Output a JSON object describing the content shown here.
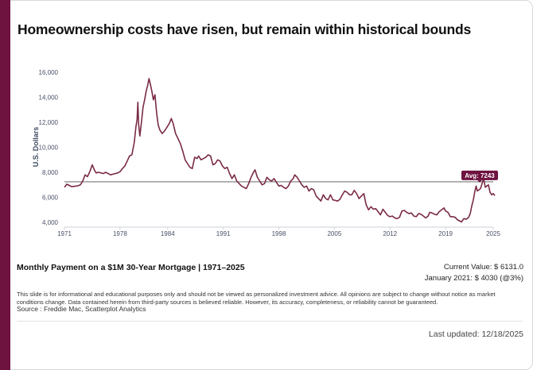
{
  "header": {
    "title": "Homeownership costs have risen, but remain within historical bounds"
  },
  "footer": {
    "subtitle": "Monthly Payment on a $1M 30-Year Mortgage | 1971–2025",
    "current_value_text": "Current Value:  $ 6131.0",
    "january_text": "January 2021: $ 4030 (@3%)",
    "disclaimer": "This slide is for informational and educational purposes only and should not be viewed as personalized investment advice. All opinions are subject to change without notice as market conditions change. Data contained herein from third-party sources is believed reliable. However, its accuracy, completeness, or reliability cannot be guaranteed.",
    "source": "Source : Freddie Mac, Scatterplot Analytics",
    "last_updated": "Last updated: 12/18/2025"
  },
  "colors": {
    "accent": "#6e1240",
    "line": "#7a2b45",
    "avg_line": "#777777"
  },
  "chart_data": {
    "type": "line",
    "ylabel": "U.S. Dollars",
    "xlabel": "",
    "xlim": [
      1971,
      2025.2
    ],
    "ylim": [
      4000,
      16000
    ],
    "xticks": [
      "1971",
      "1978",
      "1984",
      "1991",
      "1998",
      "2005",
      "2012",
      "2019",
      "2025"
    ],
    "yticks": [
      "4,000",
      "6,000",
      "8,000",
      "10,000",
      "12,000",
      "14,000",
      "16,000"
    ],
    "average_label": "Avg: 7243",
    "average": 7243,
    "series": [
      {
        "name": "Monthly Payment",
        "points": [
          [
            1971.0,
            6800
          ],
          [
            1971.3,
            7050
          ],
          [
            1971.6,
            6950
          ],
          [
            1971.9,
            6850
          ],
          [
            1972.3,
            6880
          ],
          [
            1972.7,
            6920
          ],
          [
            1973.0,
            7000
          ],
          [
            1973.3,
            7300
          ],
          [
            1973.6,
            7800
          ],
          [
            1973.9,
            7650
          ],
          [
            1974.2,
            8050
          ],
          [
            1974.5,
            8600
          ],
          [
            1974.8,
            8150
          ],
          [
            1975.0,
            7950
          ],
          [
            1975.3,
            8000
          ],
          [
            1975.6,
            7950
          ],
          [
            1975.9,
            7900
          ],
          [
            1976.2,
            8000
          ],
          [
            1976.5,
            7900
          ],
          [
            1976.8,
            7800
          ],
          [
            1977.1,
            7850
          ],
          [
            1977.4,
            7900
          ],
          [
            1977.7,
            7950
          ],
          [
            1978.0,
            8050
          ],
          [
            1978.3,
            8300
          ],
          [
            1978.6,
            8500
          ],
          [
            1978.9,
            8900
          ],
          [
            1979.2,
            9300
          ],
          [
            1979.5,
            9400
          ],
          [
            1979.8,
            10400
          ],
          [
            1980.0,
            11600
          ],
          [
            1980.15,
            12200
          ],
          [
            1980.25,
            13600
          ],
          [
            1980.35,
            11800
          ],
          [
            1980.5,
            10900
          ],
          [
            1980.7,
            12000
          ],
          [
            1980.9,
            13200
          ],
          [
            1981.1,
            13800
          ],
          [
            1981.3,
            14500
          ],
          [
            1981.5,
            15000
          ],
          [
            1981.65,
            15500
          ],
          [
            1981.8,
            15100
          ],
          [
            1982.0,
            14500
          ],
          [
            1982.2,
            13800
          ],
          [
            1982.4,
            14200
          ],
          [
            1982.6,
            12800
          ],
          [
            1982.8,
            11800
          ],
          [
            1983.0,
            11400
          ],
          [
            1983.3,
            11100
          ],
          [
            1983.6,
            11300
          ],
          [
            1983.9,
            11600
          ],
          [
            1984.2,
            11900
          ],
          [
            1984.45,
            12300
          ],
          [
            1984.7,
            11900
          ],
          [
            1985.0,
            11100
          ],
          [
            1985.3,
            10700
          ],
          [
            1985.6,
            10300
          ],
          [
            1985.9,
            9700
          ],
          [
            1986.2,
            9000
          ],
          [
            1986.5,
            8700
          ],
          [
            1986.8,
            8400
          ],
          [
            1987.1,
            8300
          ],
          [
            1987.4,
            9200
          ],
          [
            1987.7,
            9100
          ],
          [
            1987.9,
            9300
          ],
          [
            1988.2,
            9000
          ],
          [
            1988.5,
            9100
          ],
          [
            1988.8,
            9200
          ],
          [
            1989.1,
            9400
          ],
          [
            1989.4,
            9300
          ],
          [
            1989.7,
            8600
          ],
          [
            1990.0,
            8700
          ],
          [
            1990.3,
            9000
          ],
          [
            1990.6,
            8900
          ],
          [
            1990.9,
            8500
          ],
          [
            1991.2,
            8300
          ],
          [
            1991.5,
            8400
          ],
          [
            1991.8,
            7900
          ],
          [
            1992.1,
            7500
          ],
          [
            1992.4,
            7800
          ],
          [
            1992.7,
            7300
          ],
          [
            1993.0,
            7100
          ],
          [
            1993.3,
            6900
          ],
          [
            1993.6,
            6800
          ],
          [
            1993.9,
            6700
          ],
          [
            1994.2,
            7100
          ],
          [
            1994.5,
            7600
          ],
          [
            1994.8,
            8000
          ],
          [
            1995.0,
            8200
          ],
          [
            1995.3,
            7600
          ],
          [
            1995.6,
            7300
          ],
          [
            1995.9,
            7000
          ],
          [
            1996.2,
            7100
          ],
          [
            1996.5,
            7600
          ],
          [
            1996.8,
            7400
          ],
          [
            1997.1,
            7300
          ],
          [
            1997.4,
            7500
          ],
          [
            1997.7,
            7200
          ],
          [
            1998.0,
            6900
          ],
          [
            1998.3,
            6950
          ],
          [
            1998.6,
            6800
          ],
          [
            1998.9,
            6700
          ],
          [
            1999.2,
            6900
          ],
          [
            1999.5,
            7300
          ],
          [
            1999.8,
            7500
          ],
          [
            2000.0,
            7800
          ],
          [
            2000.3,
            7600
          ],
          [
            2000.6,
            7300
          ],
          [
            2000.9,
            7000
          ],
          [
            2001.2,
            6800
          ],
          [
            2001.5,
            6900
          ],
          [
            2001.8,
            6500
          ],
          [
            2002.1,
            6700
          ],
          [
            2002.4,
            6600
          ],
          [
            2002.7,
            6100
          ],
          [
            2003.0,
            5900
          ],
          [
            2003.3,
            5700
          ],
          [
            2003.6,
            6200
          ],
          [
            2003.9,
            5900
          ],
          [
            2004.2,
            5800
          ],
          [
            2004.5,
            6200
          ],
          [
            2004.8,
            5800
          ],
          [
            2005.1,
            5750
          ],
          [
            2005.4,
            5700
          ],
          [
            2005.7,
            5850
          ],
          [
            2006.0,
            6200
          ],
          [
            2006.3,
            6500
          ],
          [
            2006.6,
            6400
          ],
          [
            2006.9,
            6200
          ],
          [
            2007.2,
            6200
          ],
          [
            2007.5,
            6550
          ],
          [
            2007.8,
            6300
          ],
          [
            2008.1,
            5900
          ],
          [
            2008.4,
            6100
          ],
          [
            2008.7,
            6300
          ],
          [
            2009.0,
            5400
          ],
          [
            2009.3,
            5000
          ],
          [
            2009.6,
            5250
          ],
          [
            2009.9,
            5050
          ],
          [
            2010.2,
            5100
          ],
          [
            2010.5,
            4850
          ],
          [
            2010.8,
            4600
          ],
          [
            2011.1,
            5050
          ],
          [
            2011.4,
            4800
          ],
          [
            2011.7,
            4550
          ],
          [
            2012.0,
            4450
          ],
          [
            2012.3,
            4500
          ],
          [
            2012.6,
            4350
          ],
          [
            2012.9,
            4300
          ],
          [
            2013.2,
            4400
          ],
          [
            2013.5,
            4900
          ],
          [
            2013.8,
            4950
          ],
          [
            2014.1,
            4800
          ],
          [
            2014.4,
            4700
          ],
          [
            2014.7,
            4750
          ],
          [
            2015.0,
            4500
          ],
          [
            2015.3,
            4450
          ],
          [
            2015.6,
            4700
          ],
          [
            2015.9,
            4650
          ],
          [
            2016.2,
            4500
          ],
          [
            2016.5,
            4350
          ],
          [
            2016.8,
            4500
          ],
          [
            2017.0,
            4800
          ],
          [
            2017.3,
            4750
          ],
          [
            2017.6,
            4650
          ],
          [
            2017.9,
            4600
          ],
          [
            2018.2,
            4850
          ],
          [
            2018.5,
            5000
          ],
          [
            2018.8,
            5150
          ],
          [
            2019.0,
            4900
          ],
          [
            2019.3,
            4800
          ],
          [
            2019.6,
            4450
          ],
          [
            2019.9,
            4450
          ],
          [
            2020.2,
            4400
          ],
          [
            2020.5,
            4200
          ],
          [
            2020.8,
            4100
          ],
          [
            2021.0,
            4030
          ],
          [
            2021.3,
            4300
          ],
          [
            2021.6,
            4250
          ],
          [
            2021.9,
            4400
          ],
          [
            2022.1,
            4700
          ],
          [
            2022.3,
            5300
          ],
          [
            2022.5,
            5800
          ],
          [
            2022.7,
            6500
          ],
          [
            2022.85,
            6900
          ],
          [
            2023.0,
            6500
          ],
          [
            2023.2,
            6600
          ],
          [
            2023.4,
            6700
          ],
          [
            2023.6,
            7100
          ],
          [
            2023.8,
            7500
          ],
          [
            2024.0,
            6800
          ],
          [
            2024.2,
            6900
          ],
          [
            2024.4,
            7000
          ],
          [
            2024.6,
            6400
          ],
          [
            2024.8,
            6200
          ],
          [
            2025.0,
            6300
          ],
          [
            2025.2,
            6131
          ]
        ]
      }
    ]
  }
}
